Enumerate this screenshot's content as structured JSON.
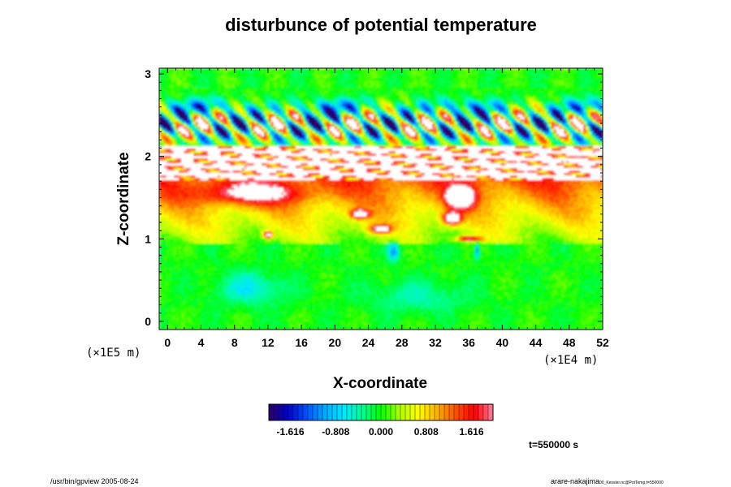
{
  "chart_data": {
    "type": "heatmap",
    "title": "disturbunce of potential temperature",
    "xlabel": "X-coordinate",
    "ylabel": "Z-coordinate",
    "x_scale_note": "(×1E4 m)",
    "y_scale_note": "(×1E5 m)",
    "xlim": [
      -1,
      52
    ],
    "ylim": [
      -0.1,
      3.07
    ],
    "x_ticks": [
      "0",
      "4",
      "8",
      "12",
      "16",
      "20",
      "24",
      "28",
      "32",
      "36",
      "40",
      "44",
      "48",
      "52"
    ],
    "y_ticks": [
      "0",
      "1",
      "2",
      "3"
    ],
    "colorbar": {
      "min": -2.0,
      "max": 2.0,
      "ticks": [
        "-1.616",
        "-0.808",
        "0.000",
        "0.808",
        "1.616"
      ],
      "tick_values": [
        -1.616,
        -0.808,
        0.0,
        0.808,
        1.616
      ],
      "colors": [
        "#2a0066",
        "#0000c8",
        "#0050ff",
        "#00aaff",
        "#00e8ff",
        "#00ff90",
        "#00ff00",
        "#b0ff00",
        "#ffff00",
        "#ffb000",
        "#ff5000",
        "#ff0000",
        "#ff80a0"
      ]
    },
    "time_label": "t=550000 s",
    "features": [
      {
        "z_range": [
          0.0,
          0.9
        ],
        "value": 0.0,
        "description": "near-neutral green"
      },
      {
        "z_range": [
          0.95,
          1.7
        ],
        "value": 0.9,
        "description": "warm yellow-orange layer"
      },
      {
        "z_range": [
          1.7,
          2.1
        ],
        "value": 2.5,
        "description": "saturated (white) band"
      },
      {
        "z_range": [
          2.1,
          2.8
        ],
        "value": -0.5,
        "description": "wave disturbances"
      }
    ]
  },
  "footer": {
    "left": "/usr/bin/gpview 2005-08-24",
    "right_main": "arare-nakajima",
    "right_sub": "00_Kessler.nc@PotTemp,t=550000"
  }
}
